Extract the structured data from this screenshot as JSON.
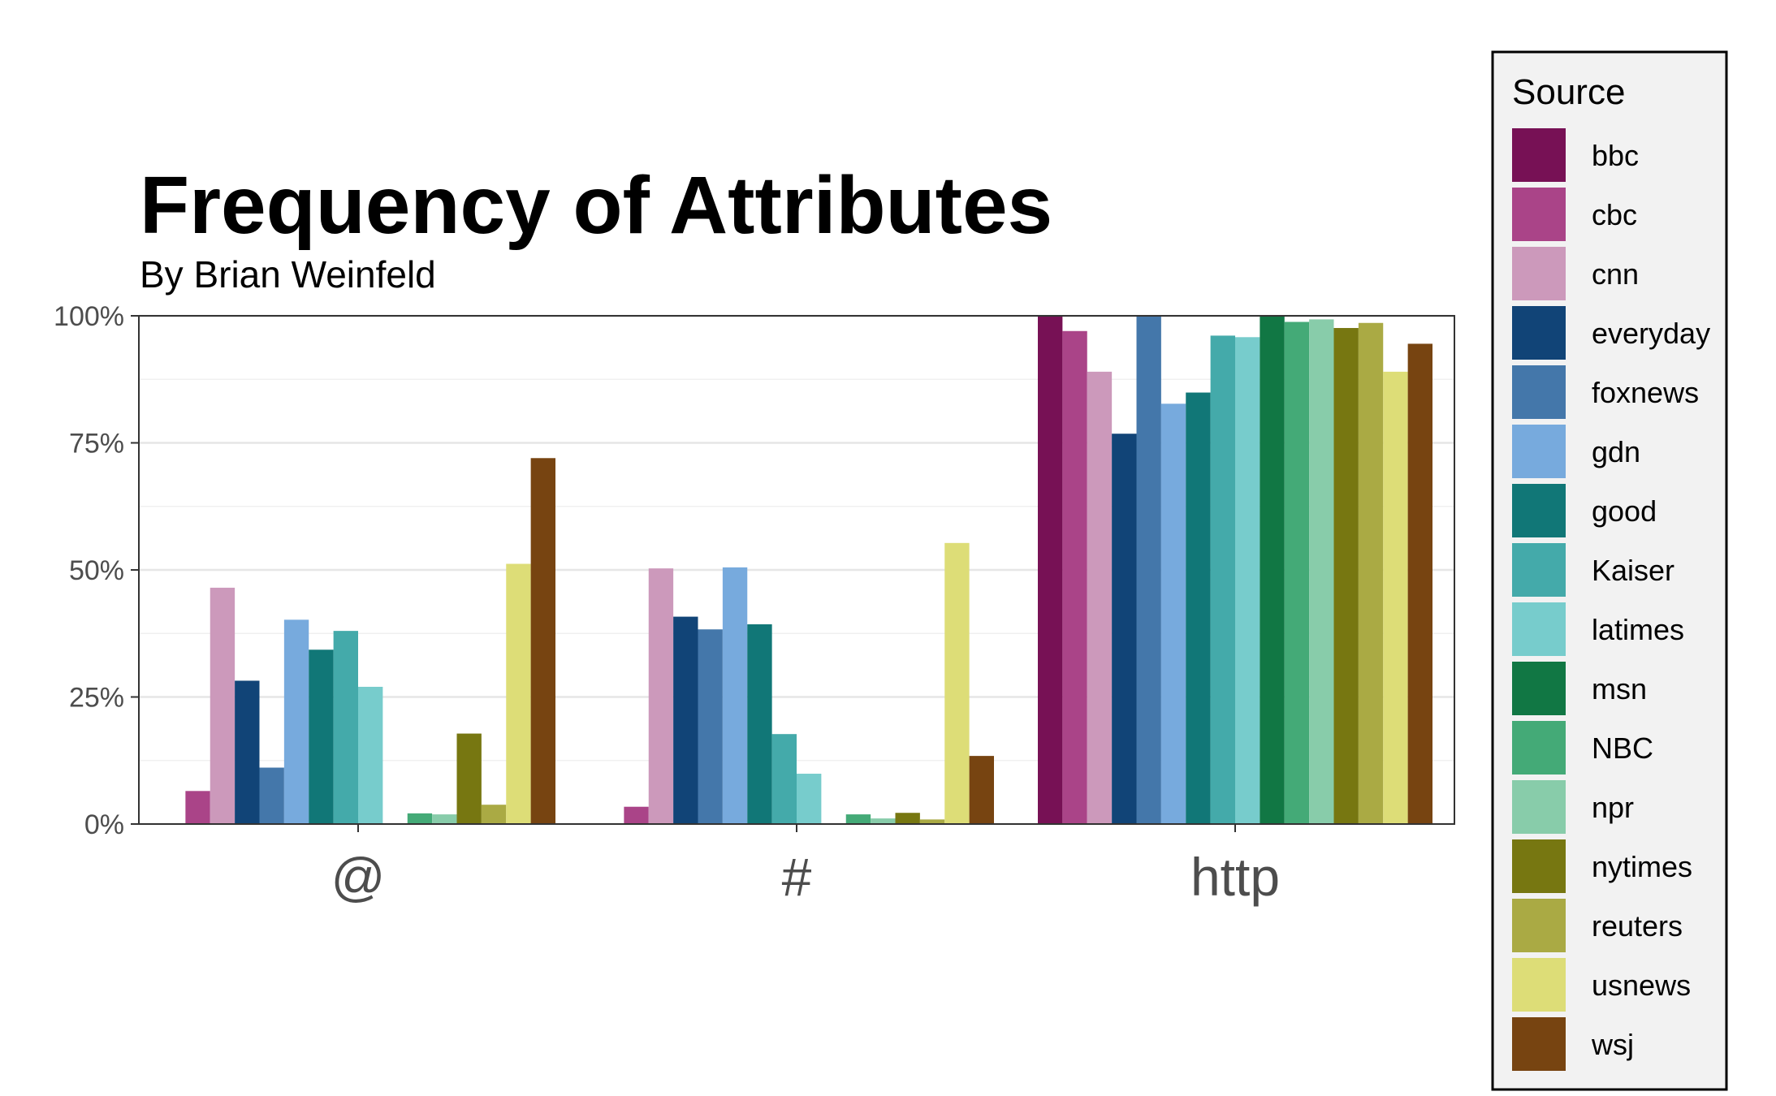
{
  "chart_data": {
    "type": "bar",
    "title": "Frequency of Attributes",
    "subtitle": "By Brian Weinfeld",
    "xlabel": "",
    "ylabel": "",
    "ylim": [
      0,
      1
    ],
    "yticks": [
      {
        "value": 0,
        "label": "0%"
      },
      {
        "value": 0.25,
        "label": "25%"
      },
      {
        "value": 0.5,
        "label": "50%"
      },
      {
        "value": 0.75,
        "label": "75%"
      },
      {
        "value": 1,
        "label": "100%"
      }
    ],
    "categories": [
      "@",
      "#",
      "http"
    ],
    "grid": true,
    "legend": {
      "title": "Source",
      "position": "right"
    },
    "series": [
      {
        "name": "bbc",
        "color": "#771155",
        "values": [
          0.0,
          0.0,
          1.0
        ]
      },
      {
        "name": "cbc",
        "color": "#AA4488",
        "values": [
          0.065,
          0.034,
          0.97
        ]
      },
      {
        "name": "cnn",
        "color": "#CC99BB",
        "values": [
          0.465,
          0.503,
          0.89
        ]
      },
      {
        "name": "everyday",
        "color": "#114477",
        "values": [
          0.282,
          0.408,
          0.768
        ]
      },
      {
        "name": "foxnews",
        "color": "#4477AA",
        "values": [
          0.111,
          0.383,
          1.0
        ]
      },
      {
        "name": "gdn",
        "color": "#77AADD",
        "values": [
          0.402,
          0.505,
          0.827
        ]
      },
      {
        "name": "good",
        "color": "#117777",
        "values": [
          0.343,
          0.393,
          0.849
        ]
      },
      {
        "name": "Kaiser",
        "color": "#44AAAA",
        "values": [
          0.38,
          0.177,
          0.961
        ]
      },
      {
        "name": "latimes",
        "color": "#77CCCC",
        "values": [
          0.27,
          0.099,
          0.958
        ]
      },
      {
        "name": "msn",
        "color": "#117744",
        "values": [
          0.0,
          0.0,
          1.0
        ]
      },
      {
        "name": "NBC",
        "color": "#44AA77",
        "values": [
          0.021,
          0.019,
          0.988
        ]
      },
      {
        "name": "npr",
        "color": "#88CCAA",
        "values": [
          0.019,
          0.011,
          0.993
        ]
      },
      {
        "name": "nytimes",
        "color": "#777711",
        "values": [
          0.178,
          0.022,
          0.976
        ]
      },
      {
        "name": "reuters",
        "color": "#AAAA44",
        "values": [
          0.038,
          0.009,
          0.986
        ]
      },
      {
        "name": "usnews",
        "color": "#DDDD77",
        "values": [
          0.512,
          0.553,
          0.89
        ]
      },
      {
        "name": "wsj",
        "color": "#774411",
        "values": [
          0.72,
          0.134,
          0.945
        ]
      }
    ]
  }
}
